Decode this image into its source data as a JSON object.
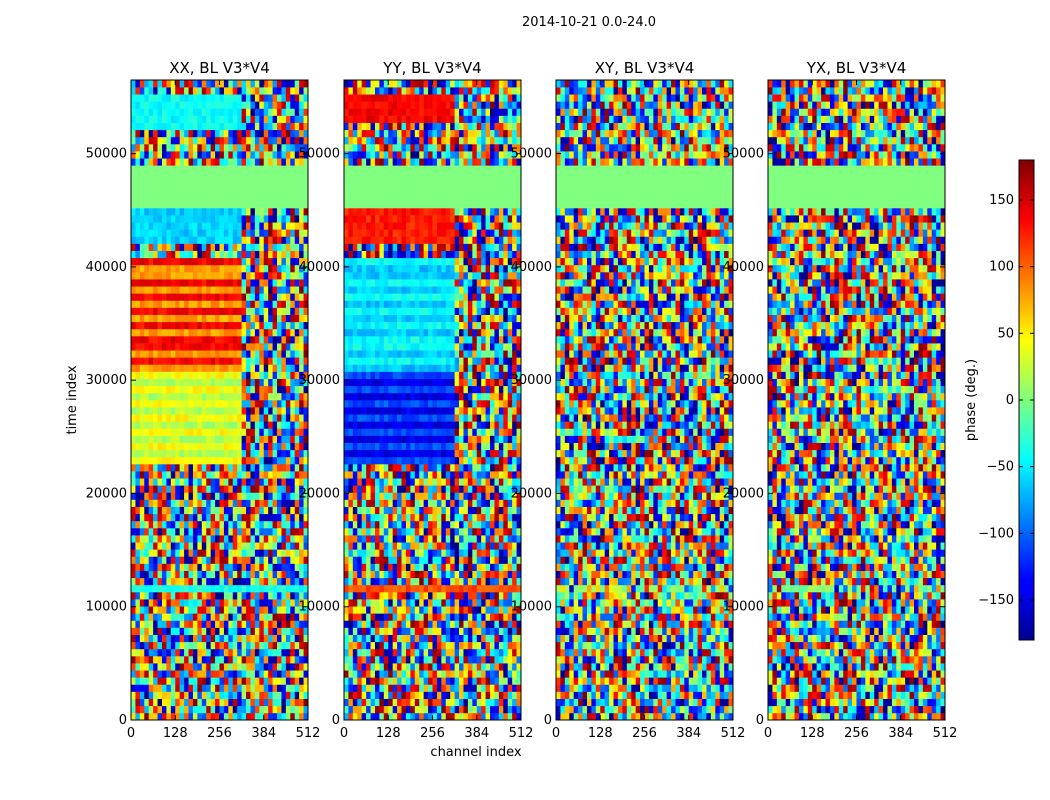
{
  "chart_data": {
    "type": "heatmap",
    "suptitle": "2014-10-21 0.0-24.0",
    "panels": [
      {
        "title": "XX, BL V3*V4",
        "polarization": "XX"
      },
      {
        "title": "YY, BL V3*V4",
        "polarization": "YY"
      },
      {
        "title": "XY, BL V3*V4",
        "polarization": "XY"
      },
      {
        "title": "YX, BL V3*V4",
        "polarization": "YX"
      }
    ],
    "xlabel": "channel index",
    "ylabel": "time index",
    "xlim": [
      0,
      512
    ],
    "ylim": [
      0,
      56500
    ],
    "xticks": [
      0,
      128,
      256,
      384,
      512
    ],
    "xtick_labels": [
      "0",
      "128",
      "256",
      "384",
      "512"
    ],
    "yticks": [
      0,
      10000,
      20000,
      30000,
      40000,
      50000
    ],
    "ytick_labels": [
      "0",
      "10000",
      "20000",
      "30000",
      "40000",
      "50000"
    ],
    "colorbar": {
      "label": "phase (deg.)",
      "range": [
        -180,
        180
      ],
      "ticks": [
        -150,
        -100,
        -50,
        0,
        50,
        100,
        150
      ],
      "tick_labels": [
        "−150",
        "−100",
        "−50",
        "0",
        "50",
        "100",
        "150"
      ],
      "colormap": "jet"
    },
    "flagged_rows": [
      45000,
      49000
    ],
    "flagged_value_deg": 0
  },
  "colors": {
    "jet_dark_blue": "#00008f",
    "jet_blue": "#0000ff",
    "jet_cyan": "#00ffff",
    "jet_green": "#7fff7f",
    "jet_yellow": "#ffff00",
    "jet_red": "#ff0000",
    "jet_dark_red": "#800000"
  }
}
